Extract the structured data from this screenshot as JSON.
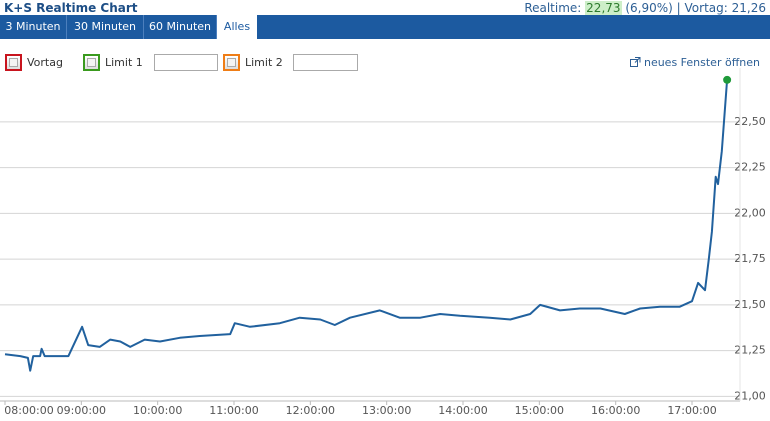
{
  "header": {
    "title": "K+S Realtime Chart",
    "realtime_label": "Realtime:",
    "realtime_value": "22,73",
    "realtime_change": "(6,90%)",
    "previous_label": "| Vortag:",
    "previous_value": "21,26"
  },
  "tabs": [
    "3 Minuten",
    "30 Minuten",
    "60 Minuten",
    "Alles"
  ],
  "controls": {
    "vortag": "Vortag",
    "limit1": "Limit 1",
    "limit2": "Limit 2",
    "new_window": "neues Fenster öffnen"
  },
  "chart_data": {
    "type": "line",
    "color": "#21619e",
    "marker_color": "#1f9a3a",
    "grid": true,
    "x": [
      8.0,
      8.2,
      8.3,
      8.33,
      8.37,
      8.46,
      8.48,
      8.52,
      8.83,
      9.01,
      9.09,
      9.24,
      9.38,
      9.51,
      9.64,
      9.83,
      10.03,
      10.29,
      10.55,
      10.95,
      11.01,
      11.21,
      11.6,
      11.86,
      12.13,
      12.32,
      12.52,
      12.91,
      13.17,
      13.44,
      13.7,
      13.96,
      14.35,
      14.62,
      14.88,
      15.01,
      15.27,
      15.53,
      15.8,
      16.12,
      16.32,
      16.58,
      16.84,
      17.0,
      17.08,
      17.17,
      17.22,
      17.26,
      17.31,
      17.34,
      17.39,
      17.46
    ],
    "values": [
      21.23,
      21.22,
      21.21,
      21.14,
      21.22,
      21.22,
      21.26,
      21.22,
      21.22,
      21.38,
      21.28,
      21.27,
      21.31,
      21.3,
      21.27,
      21.31,
      21.3,
      21.32,
      21.33,
      21.34,
      21.4,
      21.38,
      21.4,
      21.43,
      21.42,
      21.39,
      21.43,
      21.47,
      21.43,
      21.43,
      21.45,
      21.44,
      21.43,
      21.42,
      21.45,
      21.5,
      21.47,
      21.48,
      21.48,
      21.45,
      21.48,
      21.49,
      21.49,
      21.52,
      21.62,
      21.58,
      21.75,
      21.9,
      22.2,
      22.16,
      22.34,
      22.73
    ],
    "xlim": [
      8,
      17.55
    ],
    "xticks": [
      {
        "value": 8,
        "label": "08:00:00"
      },
      {
        "value": 9,
        "label": "09:00:00"
      },
      {
        "value": 10,
        "label": "10:00:00"
      },
      {
        "value": 11,
        "label": "11:00:00"
      },
      {
        "value": 12,
        "label": "12:00:00"
      },
      {
        "value": 13,
        "label": "13:00:00"
      },
      {
        "value": 14,
        "label": "14:00:00"
      },
      {
        "value": 15,
        "label": "15:00:00"
      },
      {
        "value": 16,
        "label": "16:00:00"
      },
      {
        "value": 17,
        "label": "17:00:00"
      }
    ],
    "ylim": [
      20.98,
      22.74
    ],
    "yticks": [
      {
        "value": 21,
        "label": "21,00"
      },
      {
        "value": 21.25,
        "label": "21,25"
      },
      {
        "value": 21.5,
        "label": "21,50"
      },
      {
        "value": 21.75,
        "label": "21,75"
      },
      {
        "value": 22,
        "label": "22,00"
      },
      {
        "value": 22.25,
        "label": "22,25"
      },
      {
        "value": 22.5,
        "label": "22,50"
      }
    ]
  }
}
